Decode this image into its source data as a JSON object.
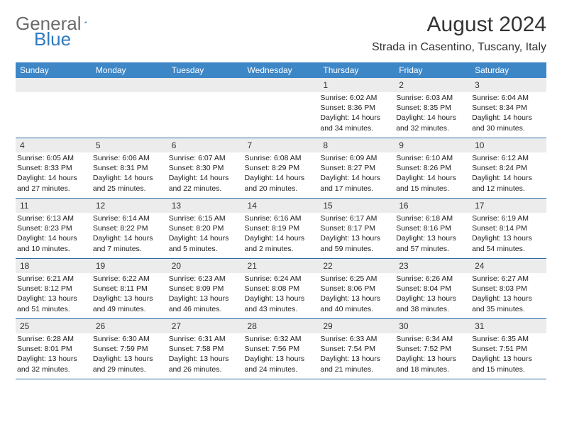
{
  "brand": {
    "part1": "General",
    "part2": "Blue"
  },
  "title": {
    "month": "August 2024",
    "location": "Strada in Casentino, Tuscany, Italy"
  },
  "colors": {
    "header_bg": "#3d87c7",
    "border": "#2e6ba3",
    "daynum_bg": "#ececec",
    "logo_gray": "#6b6b6b",
    "logo_blue": "#2f7abf"
  },
  "weekdays": [
    "Sunday",
    "Monday",
    "Tuesday",
    "Wednesday",
    "Thursday",
    "Friday",
    "Saturday"
  ],
  "weeks": [
    [
      null,
      null,
      null,
      null,
      {
        "n": "1",
        "sunrise": "6:02 AM",
        "sunset": "8:36 PM",
        "daylight": "14 hours and 34 minutes."
      },
      {
        "n": "2",
        "sunrise": "6:03 AM",
        "sunset": "8:35 PM",
        "daylight": "14 hours and 32 minutes."
      },
      {
        "n": "3",
        "sunrise": "6:04 AM",
        "sunset": "8:34 PM",
        "daylight": "14 hours and 30 minutes."
      }
    ],
    [
      {
        "n": "4",
        "sunrise": "6:05 AM",
        "sunset": "8:33 PM",
        "daylight": "14 hours and 27 minutes."
      },
      {
        "n": "5",
        "sunrise": "6:06 AM",
        "sunset": "8:31 PM",
        "daylight": "14 hours and 25 minutes."
      },
      {
        "n": "6",
        "sunrise": "6:07 AM",
        "sunset": "8:30 PM",
        "daylight": "14 hours and 22 minutes."
      },
      {
        "n": "7",
        "sunrise": "6:08 AM",
        "sunset": "8:29 PM",
        "daylight": "14 hours and 20 minutes."
      },
      {
        "n": "8",
        "sunrise": "6:09 AM",
        "sunset": "8:27 PM",
        "daylight": "14 hours and 17 minutes."
      },
      {
        "n": "9",
        "sunrise": "6:10 AM",
        "sunset": "8:26 PM",
        "daylight": "14 hours and 15 minutes."
      },
      {
        "n": "10",
        "sunrise": "6:12 AM",
        "sunset": "8:24 PM",
        "daylight": "14 hours and 12 minutes."
      }
    ],
    [
      {
        "n": "11",
        "sunrise": "6:13 AM",
        "sunset": "8:23 PM",
        "daylight": "14 hours and 10 minutes."
      },
      {
        "n": "12",
        "sunrise": "6:14 AM",
        "sunset": "8:22 PM",
        "daylight": "14 hours and 7 minutes."
      },
      {
        "n": "13",
        "sunrise": "6:15 AM",
        "sunset": "8:20 PM",
        "daylight": "14 hours and 5 minutes."
      },
      {
        "n": "14",
        "sunrise": "6:16 AM",
        "sunset": "8:19 PM",
        "daylight": "14 hours and 2 minutes."
      },
      {
        "n": "15",
        "sunrise": "6:17 AM",
        "sunset": "8:17 PM",
        "daylight": "13 hours and 59 minutes."
      },
      {
        "n": "16",
        "sunrise": "6:18 AM",
        "sunset": "8:16 PM",
        "daylight": "13 hours and 57 minutes."
      },
      {
        "n": "17",
        "sunrise": "6:19 AM",
        "sunset": "8:14 PM",
        "daylight": "13 hours and 54 minutes."
      }
    ],
    [
      {
        "n": "18",
        "sunrise": "6:21 AM",
        "sunset": "8:12 PM",
        "daylight": "13 hours and 51 minutes."
      },
      {
        "n": "19",
        "sunrise": "6:22 AM",
        "sunset": "8:11 PM",
        "daylight": "13 hours and 49 minutes."
      },
      {
        "n": "20",
        "sunrise": "6:23 AM",
        "sunset": "8:09 PM",
        "daylight": "13 hours and 46 minutes."
      },
      {
        "n": "21",
        "sunrise": "6:24 AM",
        "sunset": "8:08 PM",
        "daylight": "13 hours and 43 minutes."
      },
      {
        "n": "22",
        "sunrise": "6:25 AM",
        "sunset": "8:06 PM",
        "daylight": "13 hours and 40 minutes."
      },
      {
        "n": "23",
        "sunrise": "6:26 AM",
        "sunset": "8:04 PM",
        "daylight": "13 hours and 38 minutes."
      },
      {
        "n": "24",
        "sunrise": "6:27 AM",
        "sunset": "8:03 PM",
        "daylight": "13 hours and 35 minutes."
      }
    ],
    [
      {
        "n": "25",
        "sunrise": "6:28 AM",
        "sunset": "8:01 PM",
        "daylight": "13 hours and 32 minutes."
      },
      {
        "n": "26",
        "sunrise": "6:30 AM",
        "sunset": "7:59 PM",
        "daylight": "13 hours and 29 minutes."
      },
      {
        "n": "27",
        "sunrise": "6:31 AM",
        "sunset": "7:58 PM",
        "daylight": "13 hours and 26 minutes."
      },
      {
        "n": "28",
        "sunrise": "6:32 AM",
        "sunset": "7:56 PM",
        "daylight": "13 hours and 24 minutes."
      },
      {
        "n": "29",
        "sunrise": "6:33 AM",
        "sunset": "7:54 PM",
        "daylight": "13 hours and 21 minutes."
      },
      {
        "n": "30",
        "sunrise": "6:34 AM",
        "sunset": "7:52 PM",
        "daylight": "13 hours and 18 minutes."
      },
      {
        "n": "31",
        "sunrise": "6:35 AM",
        "sunset": "7:51 PM",
        "daylight": "13 hours and 15 minutes."
      }
    ]
  ],
  "labels": {
    "sunrise": "Sunrise:",
    "sunset": "Sunset:",
    "daylight": "Daylight:"
  }
}
